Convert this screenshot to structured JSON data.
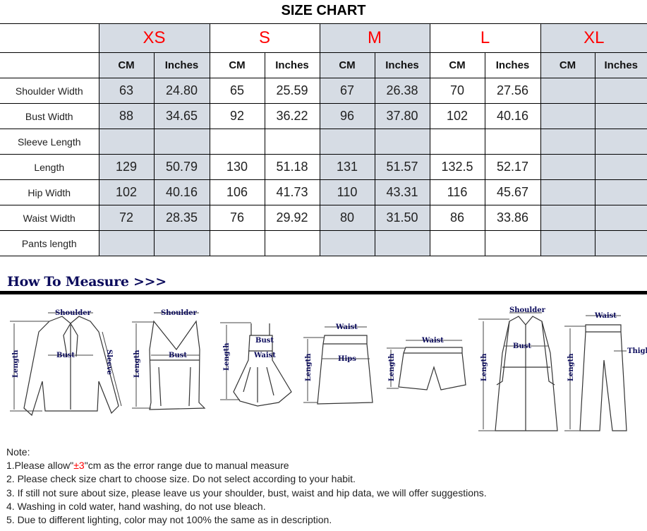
{
  "title": "SIZE CHART",
  "sizes": [
    "XS",
    "S",
    "M",
    "L",
    "XL"
  ],
  "units": [
    "CM",
    "Inches"
  ],
  "size_color": "#ff0000",
  "shade_color": "#d6dce4",
  "rows": [
    {
      "label": "Shoulder Width",
      "values": [
        "63",
        "24.80",
        "65",
        "25.59",
        "67",
        "26.38",
        "70",
        "27.56",
        "",
        ""
      ]
    },
    {
      "label": "Bust Width",
      "values": [
        "88",
        "34.65",
        "92",
        "36.22",
        "96",
        "37.80",
        "102",
        "40.16",
        "",
        ""
      ]
    },
    {
      "label": "Sleeve Length",
      "values": [
        "",
        "",
        "",
        "",
        "",
        "",
        "",
        "",
        "",
        ""
      ]
    },
    {
      "label": "Length",
      "values": [
        "129",
        "50.79",
        "130",
        "51.18",
        "131",
        "51.57",
        "132.5",
        "52.17",
        "",
        ""
      ]
    },
    {
      "label": "Hip Width",
      "values": [
        "102",
        "40.16",
        "106",
        "41.73",
        "110",
        "43.31",
        "116",
        "45.67",
        "",
        ""
      ]
    },
    {
      "label": "Waist Width",
      "values": [
        "72",
        "28.35",
        "76",
        "29.92",
        "80",
        "31.50",
        "86",
        "33.86",
        "",
        ""
      ]
    },
    {
      "label": "Pants length",
      "values": [
        "",
        "",
        "",
        "",
        "",
        "",
        "",
        "",
        "",
        ""
      ]
    }
  ],
  "measure": {
    "title": "How To Measure >>>",
    "shirt": {
      "shoulder": "Shoulder",
      "bust": "Bust",
      "sleeve": "Sleeve",
      "length": "Length"
    },
    "vest": {
      "shoulder": "Shoulder",
      "bust": "Bust",
      "length": "Length"
    },
    "dress": {
      "bust": "Bust",
      "waist": "Waist",
      "length": "Length"
    },
    "skirt": {
      "waist": "Waist",
      "hips": "Hips",
      "length": "Length"
    },
    "shorts": {
      "waist": "Waist",
      "length": "Length"
    },
    "coat": {
      "shoulder": "Shoulder",
      "bust": "Bust",
      "length": "Length"
    },
    "pants": {
      "waist": "Waist",
      "thigh": "Thigh",
      "length": "Length"
    }
  },
  "notes": {
    "heading": "Note:",
    "line1_pre": "1.Please allow\"",
    "line1_red": "±3",
    "line1_post": "\"cm as the error range due to manual measure",
    "line2": "2. Please check size chart to choose size. Do not select according to your habit.",
    "line3": "3. If still not sure about size, please leave us your shoulder, bust, waist and hip data, we will offer suggestions.",
    "line4": "4. Washing in cold water, hand washing, do not use bleach.",
    "line5": "5. Due to different lighting, color may not 100% the same as in description."
  }
}
